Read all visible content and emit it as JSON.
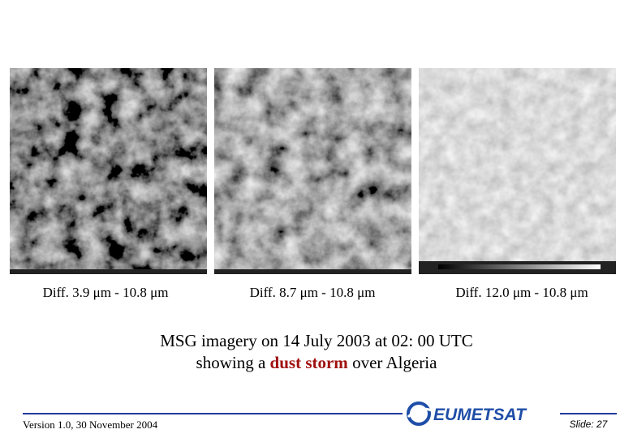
{
  "panels": [
    {
      "caption": "Diff. 3.9 μm - 10.8 μm"
    },
    {
      "caption": "Diff. 8.7 μm - 10.8 μm"
    },
    {
      "caption": "Diff. 12.0 μm - 10.8 μm"
    }
  ],
  "caption": {
    "line1": "MSG imagery on 14 July 2003 at 02: 00 UTC",
    "line2_before": "showing a ",
    "line2_highlight": "dust storm",
    "line2_after": " over Algeria"
  },
  "footer": {
    "version": "Version 1.0, 30 November 2004",
    "logo": "EUMETSAT",
    "slide": "Slide: 27"
  }
}
